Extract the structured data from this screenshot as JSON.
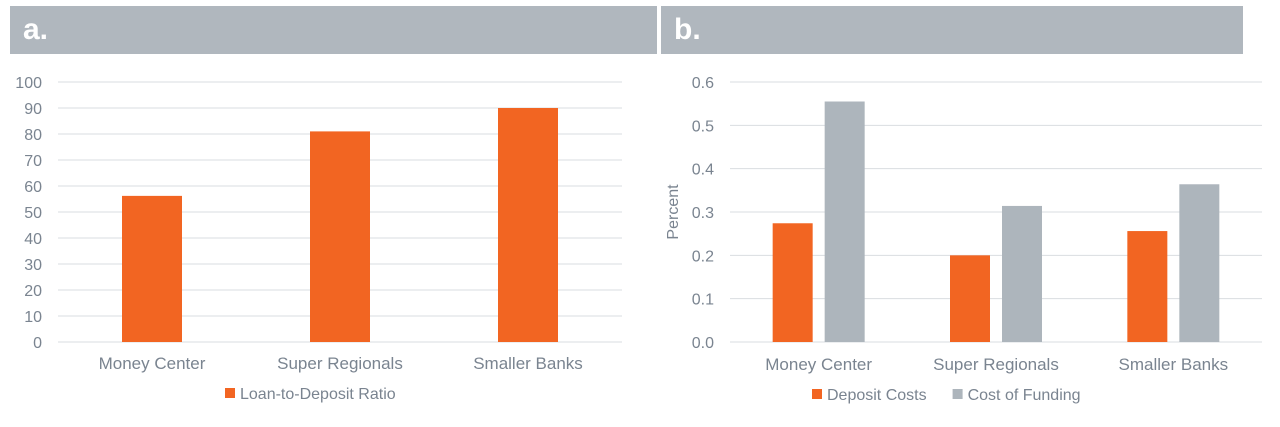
{
  "panels": {
    "a": {
      "label": "a."
    },
    "b": {
      "label": "b."
    }
  },
  "colors": {
    "orange": "#f26522",
    "gray": "#adb5bc",
    "grid": "#d9dde1",
    "axis_text": "#7a8490"
  },
  "chart_data": [
    {
      "type": "bar",
      "categories": [
        "Money Center",
        "Super Regionals",
        "Smaller Banks"
      ],
      "series": [
        {
          "name": "Loan-to-Deposit Ratio",
          "values": [
            56.2,
            81,
            90
          ]
        }
      ],
      "title": "",
      "xlabel": "",
      "ylabel": "",
      "ylim": [
        0,
        100
      ],
      "yticks": [
        "0",
        "10",
        "20",
        "30",
        "40",
        "50",
        "60",
        "70",
        "80",
        "90",
        "100"
      ],
      "grid": true,
      "legend": "bottom"
    },
    {
      "type": "bar",
      "categories": [
        "Money Center",
        "Super Regionals",
        "Smaller Banks"
      ],
      "series": [
        {
          "name": "Deposit Costs",
          "values": [
            0.274,
            0.2,
            0.256
          ]
        },
        {
          "name": "Cost of Funding",
          "values": [
            0.555,
            0.314,
            0.364
          ]
        }
      ],
      "title": "",
      "xlabel": "",
      "ylabel": "Percent",
      "ylim": [
        0,
        0.6
      ],
      "yticks": [
        "0.0",
        "0.1",
        "0.2",
        "0.3",
        "0.4",
        "0.5",
        "0.6"
      ],
      "grid": true,
      "legend": "bottom"
    }
  ]
}
